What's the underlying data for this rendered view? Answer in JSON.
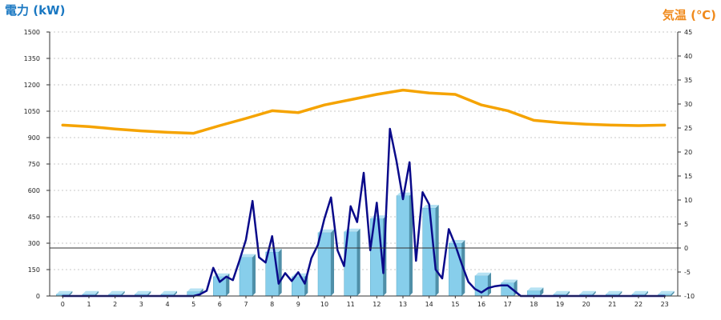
{
  "chart_data": {
    "type": "bar",
    "y_left_title": "電力 (kW)",
    "y_right_title": "気温 (℃)",
    "left_axis_title_color": "#1a78c2",
    "right_axis_title_color": "#f08a1c",
    "categories": [
      "0",
      "1",
      "2",
      "3",
      "4",
      "5",
      "6",
      "7",
      "8",
      "9",
      "10",
      "11",
      "12",
      "13",
      "14",
      "15",
      "16",
      "17",
      "18",
      "19",
      "20",
      "21",
      "22",
      "23"
    ],
    "ylim_left": [
      0,
      1500
    ],
    "yticks_left": [
      "0",
      "150",
      "300",
      "450",
      "600",
      "750",
      "900",
      "1050",
      "1200",
      "1350",
      "1500"
    ],
    "ylim_right": [
      -10,
      45
    ],
    "yticks_right": [
      "-10",
      "-5",
      "0",
      "5",
      "10",
      "15",
      "20",
      "25",
      "30",
      "35",
      "40",
      "45"
    ],
    "grid": true,
    "reference_line_right": 0,
    "series": [
      {
        "kind": "bar",
        "color": "#87ceeb",
        "values": [
          10,
          10,
          10,
          10,
          10,
          25,
          110,
          220,
          250,
          110,
          360,
          365,
          440,
          570,
          500,
          300,
          115,
          75,
          30,
          10,
          10,
          10,
          10,
          10
        ]
      },
      {
        "kind": "line",
        "axis": "right",
        "color": "#f5a300",
        "x": [
          0,
          1,
          2,
          3,
          4,
          5,
          6,
          7,
          8,
          9,
          10,
          11,
          12,
          13,
          14,
          15,
          16,
          17,
          18,
          19,
          20,
          21,
          22,
          23
        ],
        "values": [
          25.6,
          25.3,
          24.8,
          24.4,
          24.1,
          23.9,
          25.5,
          27.0,
          28.6,
          28.2,
          29.8,
          30.9,
          32.0,
          32.9,
          32.3,
          32.0,
          29.8,
          28.6,
          26.6,
          26.1,
          25.8,
          25.6,
          25.5,
          25.6
        ]
      },
      {
        "kind": "line",
        "axis": "left",
        "color": "#0a0a8a",
        "x": [
          0,
          1,
          2,
          3,
          4,
          5,
          5.25,
          5.5,
          5.75,
          6,
          6.25,
          6.5,
          6.75,
          7,
          7.25,
          7.5,
          7.75,
          8,
          8.25,
          8.5,
          8.75,
          9,
          9.25,
          9.5,
          9.75,
          10,
          10.25,
          10.5,
          10.75,
          11,
          11.25,
          11.5,
          11.75,
          12,
          12.25,
          12.5,
          12.75,
          13,
          13.25,
          13.5,
          13.75,
          14,
          14.25,
          14.5,
          14.75,
          15,
          15.25,
          15.5,
          15.75,
          16,
          16.25,
          16.5,
          16.75,
          17,
          17.25,
          17.5,
          17.75,
          18,
          18.5,
          19,
          20,
          21,
          22,
          23
        ],
        "values": [
          0,
          0,
          0,
          0,
          0,
          0,
          10,
          30,
          160,
          80,
          110,
          90,
          200,
          320,
          540,
          220,
          190,
          340,
          70,
          130,
          85,
          135,
          70,
          215,
          290,
          440,
          560,
          260,
          170,
          510,
          420,
          700,
          260,
          530,
          130,
          950,
          770,
          550,
          760,
          200,
          590,
          520,
          150,
          100,
          380,
          290,
          180,
          80,
          40,
          20,
          45,
          55,
          60,
          60,
          30,
          0,
          0,
          0,
          0,
          0,
          0,
          0,
          0,
          0
        ]
      }
    ]
  }
}
